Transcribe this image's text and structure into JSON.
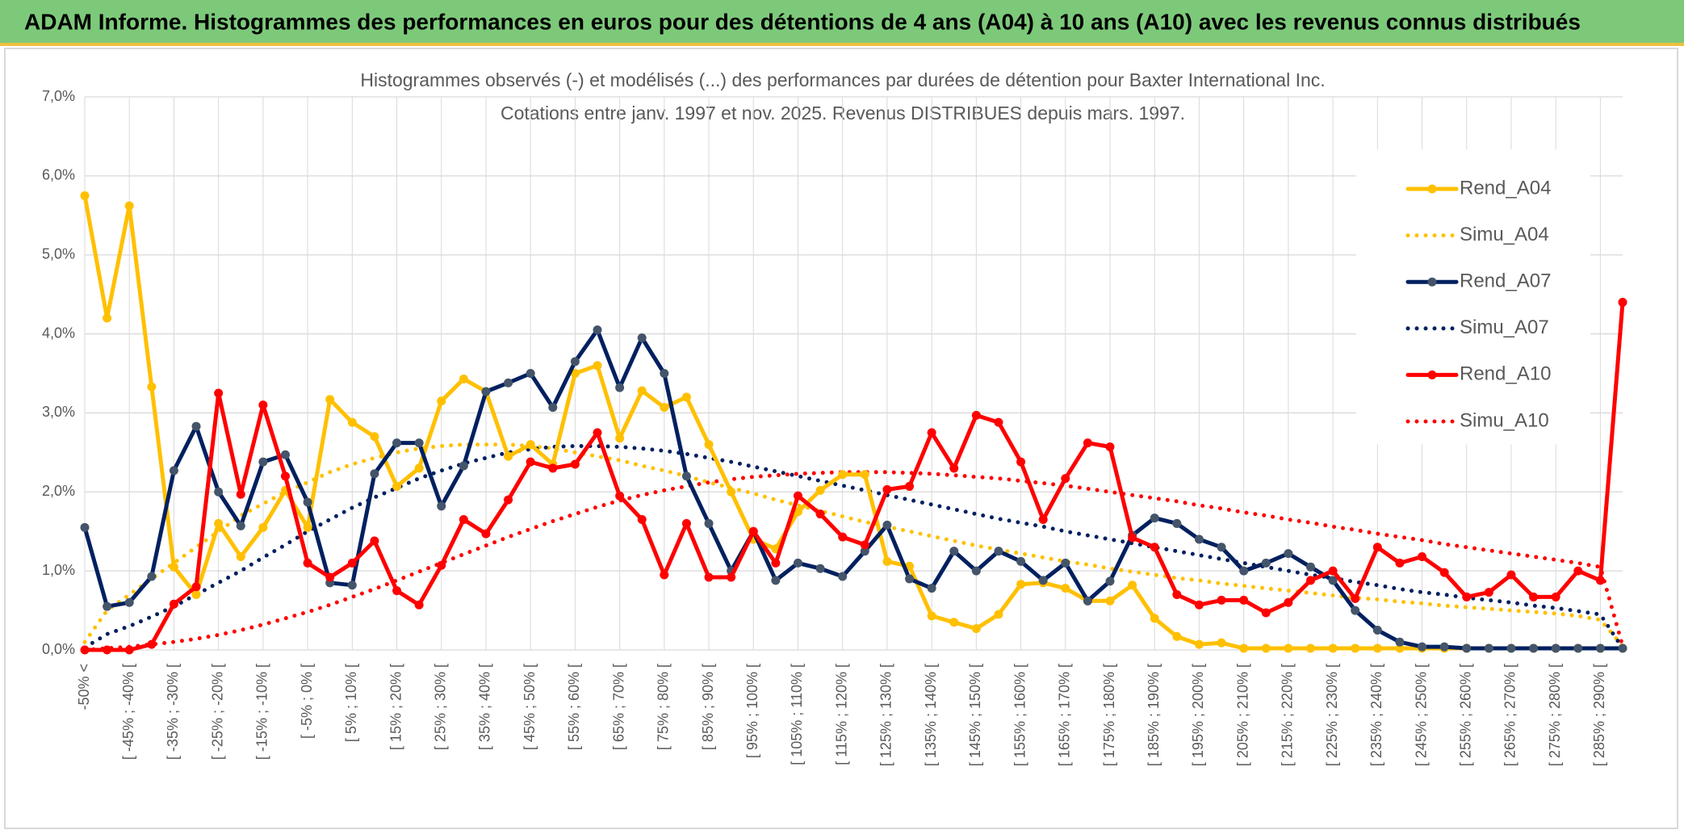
{
  "header": {
    "title": "ADAM Informe. Histogrammes des performances en euros pour des détentions de 4 ans (A04) à 10 ans (A10) avec les revenus connus distribués"
  },
  "chart_data": {
    "type": "line",
    "title": "Histogrammes observés (-) et modélisés (...) des performances par durées de détention pour Baxter International Inc.",
    "subtitle": "Cotations entre janv. 1997 et nov. 2025. Revenus DISTRIBUES depuis mars. 1997.",
    "categories": [
      "-50% <",
      null,
      "[ -45% ; -40% [",
      null,
      "[ -35% ; -30% [",
      null,
      "[ -25% ; -20% [",
      null,
      "[ -15% ; -10% [",
      null,
      "[ -5% ; 0% [",
      null,
      "[ 5% ; 10% [",
      null,
      "[ 15% ; 20% [",
      null,
      "[ 25% ; 30% [",
      null,
      "[ 35% ; 40% [",
      null,
      "[ 45% ; 50% [",
      null,
      "[ 55% ; 60% [",
      null,
      "[ 65% ; 70% [",
      null,
      "[ 75% ; 80% [",
      null,
      "[ 85% ; 90% [",
      null,
      "[ 95% ; 100% [",
      null,
      "[ 105% ; 110% [",
      null,
      "[ 115% ; 120% [",
      null,
      "[ 125% ; 130% [",
      null,
      "[ 135% ; 140% [",
      null,
      "[ 145% ; 150% [",
      null,
      "[ 155% ; 160% [",
      null,
      "[ 165% ; 170% [",
      null,
      "[ 175% ; 180% [",
      null,
      "[ 185% ; 190% [",
      null,
      "[ 195% ; 200% [",
      null,
      "[ 205% ; 210% [",
      null,
      "[ 215% ; 220% [",
      null,
      "[ 225% ; 230% [",
      null,
      "[ 235% ; 240% [",
      null,
      "[ 245% ; 250% [",
      null,
      "[ 255% ; 260% [",
      null,
      "[ 265% ; 270% [",
      null,
      "[ 275% ; 280% [",
      null,
      "[ 285% ; 290% [",
      null
    ],
    "series": [
      {
        "name": "Rend_A04",
        "color": "#ffc000",
        "line_style": "solid",
        "markers": true,
        "values": [
          5.75,
          4.2,
          5.62,
          3.33,
          1.05,
          0.7,
          1.6,
          1.18,
          1.55,
          2.02,
          1.55,
          3.17,
          2.88,
          2.7,
          2.07,
          2.3,
          3.15,
          3.43,
          3.27,
          2.45,
          2.6,
          2.35,
          3.5,
          3.6,
          2.68,
          3.28,
          3.07,
          3.2,
          2.6,
          2.0,
          1.4,
          1.28,
          1.75,
          2.02,
          2.22,
          2.22,
          1.12,
          1.06,
          0.43,
          0.35,
          0.27,
          0.45,
          0.83,
          0.85,
          0.78,
          0.62,
          0.62,
          0.82,
          0.4,
          0.17,
          0.07,
          0.09,
          0.02,
          0.02,
          0.02,
          0.02,
          0.02,
          0.02,
          0.02,
          0.02,
          0.02,
          0.02,
          0.02,
          0.02,
          0.02,
          0.02,
          0.02,
          0.02,
          0.02,
          0.02
        ]
      },
      {
        "name": "Simu_A04",
        "color": "#ffc000",
        "line_style": "dotted",
        "markers": false,
        "values": [
          0.1,
          0.5,
          0.7,
          0.9,
          1.1,
          1.3,
          1.5,
          1.7,
          1.85,
          2.0,
          2.12,
          2.25,
          2.35,
          2.43,
          2.5,
          2.55,
          2.58,
          2.6,
          2.6,
          2.6,
          2.58,
          2.55,
          2.5,
          2.45,
          2.4,
          2.33,
          2.27,
          2.2,
          2.12,
          2.05,
          1.98,
          1.9,
          1.83,
          1.76,
          1.69,
          1.62,
          1.56,
          1.5,
          1.44,
          1.38,
          1.32,
          1.27,
          1.22,
          1.17,
          1.12,
          1.08,
          1.03,
          0.99,
          0.95,
          0.91,
          0.88,
          0.84,
          0.81,
          0.78,
          0.75,
          0.72,
          0.69,
          0.66,
          0.64,
          0.61,
          0.59,
          0.56,
          0.54,
          0.52,
          0.5,
          0.48,
          0.46,
          0.43,
          0.38,
          0.05
        ]
      },
      {
        "name": "Rend_A07",
        "color": "#002060",
        "line_style": "solid",
        "markers": true,
        "values": [
          1.55,
          0.55,
          0.6,
          0.93,
          2.27,
          2.83,
          2.0,
          1.57,
          2.38,
          2.47,
          1.87,
          0.85,
          0.82,
          2.23,
          2.62,
          2.62,
          1.82,
          2.33,
          3.27,
          3.38,
          3.5,
          3.07,
          3.65,
          4.05,
          3.32,
          3.95,
          3.5,
          2.2,
          1.6,
          1.0,
          1.5,
          0.88,
          1.1,
          1.03,
          0.93,
          1.25,
          1.58,
          0.9,
          0.78,
          1.25,
          1.0,
          1.25,
          1.12,
          0.88,
          1.1,
          0.62,
          0.87,
          1.45,
          1.67,
          1.6,
          1.4,
          1.3,
          1.0,
          1.1,
          1.22,
          1.05,
          0.88,
          0.5,
          0.25,
          0.1,
          0.04,
          0.04,
          0.02,
          0.02,
          0.02,
          0.02,
          0.02,
          0.02,
          0.02,
          0.02
        ]
      },
      {
        "name": "Simu_A07",
        "color": "#002060",
        "line_style": "dotted",
        "markers": false,
        "values": [
          0.03,
          0.2,
          0.3,
          0.42,
          0.55,
          0.7,
          0.85,
          1.0,
          1.17,
          1.33,
          1.5,
          1.65,
          1.8,
          1.93,
          2.05,
          2.17,
          2.27,
          2.36,
          2.43,
          2.5,
          2.54,
          2.57,
          2.58,
          2.58,
          2.57,
          2.55,
          2.52,
          2.48,
          2.43,
          2.38,
          2.32,
          2.26,
          2.2,
          2.14,
          2.08,
          2.02,
          1.96,
          1.9,
          1.84,
          1.78,
          1.72,
          1.66,
          1.61,
          1.56,
          1.5,
          1.45,
          1.4,
          1.35,
          1.3,
          1.25,
          1.2,
          1.15,
          1.1,
          1.05,
          1.0,
          0.95,
          0.91,
          0.86,
          0.82,
          0.77,
          0.73,
          0.7,
          0.66,
          0.63,
          0.6,
          0.56,
          0.53,
          0.49,
          0.45,
          0.02
        ]
      },
      {
        "name": "Rend_A10",
        "color": "#ff0000",
        "line_style": "solid",
        "markers": true,
        "values": [
          0,
          0,
          0,
          0.07,
          0.58,
          0.8,
          3.25,
          1.97,
          3.1,
          2.2,
          1.1,
          0.92,
          1.1,
          1.38,
          0.75,
          0.57,
          1.07,
          1.65,
          1.47,
          1.9,
          2.38,
          2.3,
          2.35,
          2.75,
          1.95,
          1.65,
          0.95,
          1.6,
          0.92,
          0.92,
          1.5,
          1.1,
          1.95,
          1.72,
          1.43,
          1.33,
          2.03,
          2.07,
          2.75,
          2.3,
          2.97,
          2.88,
          2.38,
          1.65,
          2.17,
          2.62,
          2.57,
          1.42,
          1.3,
          0.7,
          0.57,
          0.63,
          0.63,
          0.47,
          0.6,
          0.88,
          1.0,
          0.65,
          1.3,
          1.1,
          1.18,
          0.98,
          0.67,
          0.73,
          0.95,
          0.67,
          0.67,
          1.0,
          0.88,
          4.4
        ]
      },
      {
        "name": "Simu_A10",
        "color": "#ff0000",
        "line_style": "dotted",
        "markers": false,
        "values": [
          0.0,
          0.02,
          0.04,
          0.07,
          0.1,
          0.14,
          0.19,
          0.25,
          0.32,
          0.4,
          0.48,
          0.57,
          0.67,
          0.77,
          0.88,
          0.99,
          1.1,
          1.21,
          1.32,
          1.43,
          1.53,
          1.63,
          1.72,
          1.81,
          1.89,
          1.96,
          2.02,
          2.07,
          2.12,
          2.16,
          2.19,
          2.21,
          2.23,
          2.24,
          2.25,
          2.25,
          2.25,
          2.24,
          2.23,
          2.21,
          2.19,
          2.17,
          2.14,
          2.11,
          2.08,
          2.04,
          2.0,
          1.96,
          1.92,
          1.88,
          1.83,
          1.79,
          1.74,
          1.7,
          1.65,
          1.61,
          1.56,
          1.52,
          1.47,
          1.43,
          1.39,
          1.34,
          1.3,
          1.26,
          1.22,
          1.18,
          1.14,
          1.1,
          1.05,
          0.05
        ]
      }
    ],
    "ylim": [
      0,
      7
    ],
    "yticks": [
      {
        "value": 0,
        "label": "0,0%"
      },
      {
        "value": 1,
        "label": "1,0%"
      },
      {
        "value": 2,
        "label": "2,0%"
      },
      {
        "value": 3,
        "label": "3,0%"
      },
      {
        "value": 4,
        "label": "4,0%"
      },
      {
        "value": 5,
        "label": "5,0%"
      },
      {
        "value": 6,
        "label": "6,0%"
      },
      {
        "value": 7,
        "label": "7,0%"
      }
    ],
    "grid": true,
    "legend": "right"
  }
}
